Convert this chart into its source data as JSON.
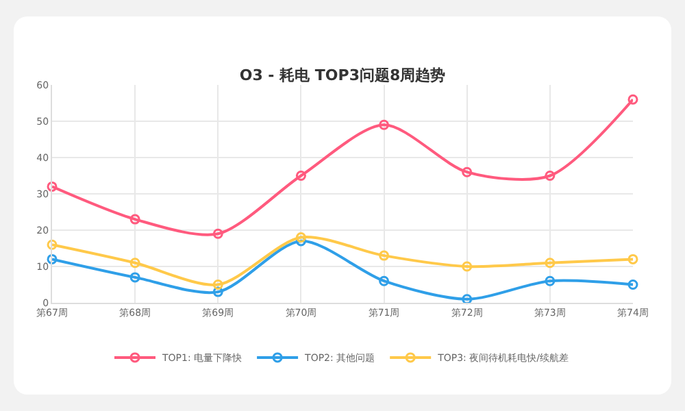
{
  "chart_data": {
    "type": "line",
    "title": "O3 - 耗电 TOP3问题8周趋势",
    "categories": [
      "第67周",
      "第68周",
      "第69周",
      "第70周",
      "第71周",
      "第72周",
      "第73周",
      "第74周"
    ],
    "series": [
      {
        "name": "TOP1: 电量下降快",
        "color": "#ff5a7e",
        "values": [
          32,
          23,
          19,
          35,
          49,
          36,
          35,
          56
        ]
      },
      {
        "name": "TOP2: 其他问题",
        "color": "#2f9fe8",
        "values": [
          12,
          7,
          3,
          17,
          6,
          1,
          6,
          5
        ]
      },
      {
        "name": "TOP3: 夜间待机耗电快/续航差",
        "color": "#ffc94a",
        "values": [
          16,
          11,
          5,
          18,
          13,
          10,
          11,
          12
        ]
      }
    ],
    "ylim": [
      0,
      60
    ],
    "yticks": [
      0,
      10,
      20,
      30,
      40,
      50,
      60
    ],
    "grid": true,
    "legend": "bottom",
    "marker": "circle",
    "line_style": "solid"
  }
}
